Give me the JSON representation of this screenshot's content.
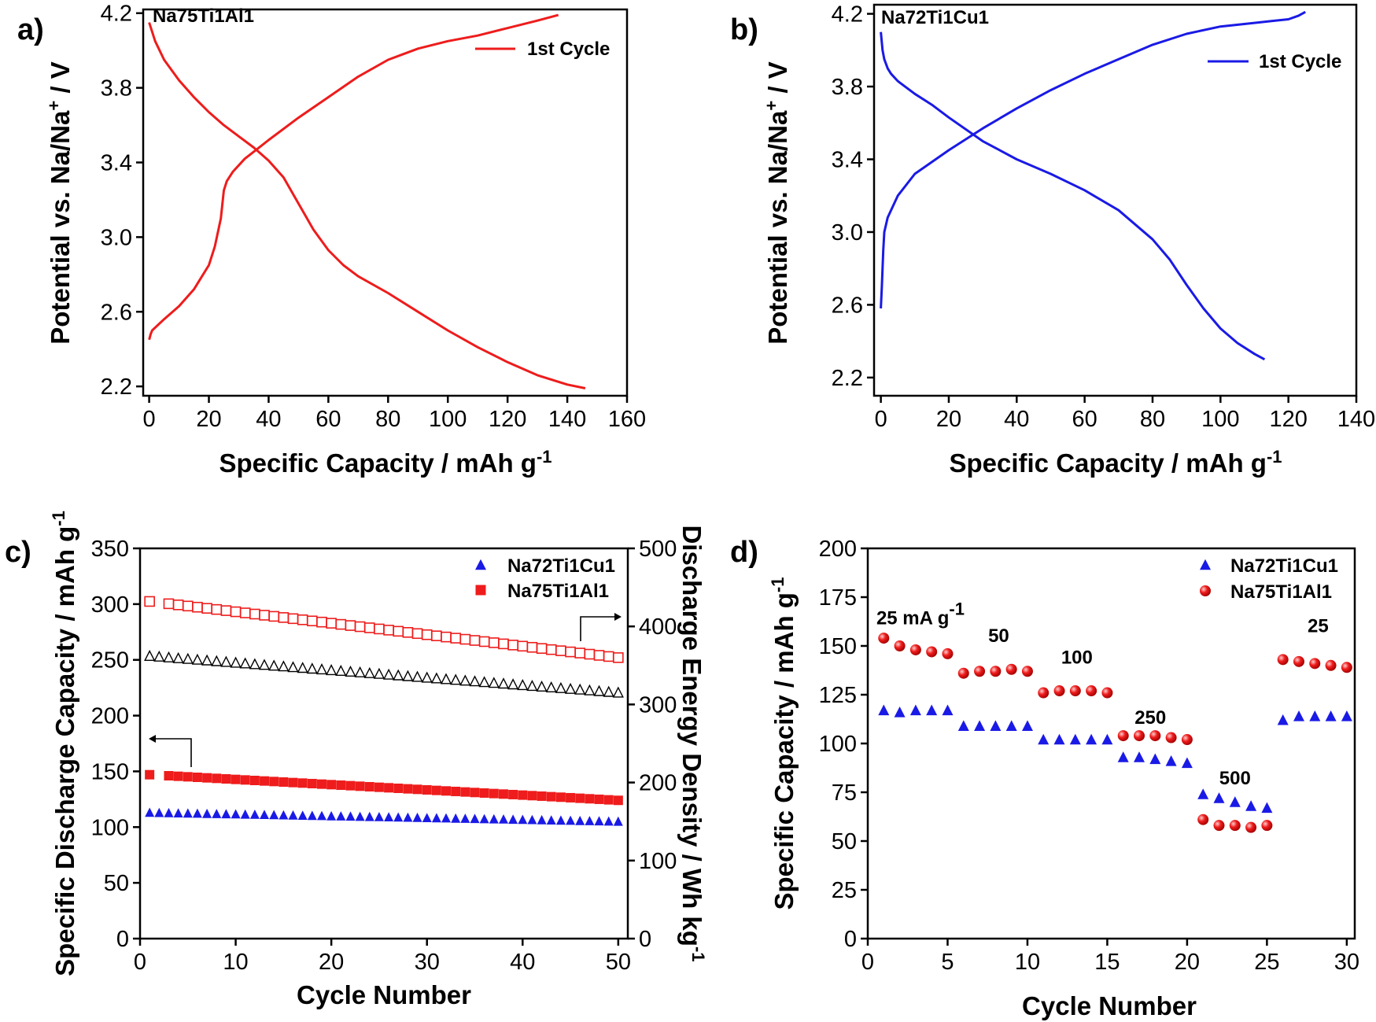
{
  "colors": {
    "red": "#ee1c1c",
    "blue": "#1a1ae6",
    "black": "#000000"
  },
  "chart_data": [
    {
      "id": "a",
      "type": "line",
      "panel_label": "a)",
      "title": "Na75Ti1Al1",
      "xlabel": "Specific Capacity / mAh g",
      "xlabel_sup": "-1",
      "ylabel": "Potential vs. Na/Na",
      "ylabel_sup": "+",
      "ylabel_suffix": " / V",
      "xlim": [
        -2,
        160
      ],
      "ylim": [
        2.15,
        4.22
      ],
      "xticks": [
        0,
        20,
        40,
        60,
        80,
        100,
        120,
        140,
        160
      ],
      "yticks": [
        2.2,
        2.6,
        3.0,
        3.4,
        3.8,
        4.2
      ],
      "xtick_labels": [
        "0",
        "20",
        "40",
        "60",
        "80",
        "100",
        "120",
        "140",
        "160"
      ],
      "ytick_labels": [
        "2.2",
        "2.6",
        "3.0",
        "3.4",
        "3.8",
        "4.2"
      ],
      "legend": [
        "1st Cycle"
      ],
      "series": [
        {
          "name": "1st Cycle (discharge)",
          "color": "#ee1c1c",
          "x": [
            0,
            2,
            5,
            10,
            15,
            20,
            25,
            30,
            35,
            40,
            45,
            50,
            55,
            60,
            65,
            70,
            80,
            90,
            100,
            110,
            120,
            130,
            140,
            146
          ],
          "y": [
            4.15,
            4.05,
            3.95,
            3.84,
            3.75,
            3.67,
            3.6,
            3.54,
            3.48,
            3.41,
            3.32,
            3.18,
            3.04,
            2.93,
            2.85,
            2.79,
            2.7,
            2.6,
            2.5,
            2.41,
            2.33,
            2.26,
            2.21,
            2.19
          ]
        },
        {
          "name": "1st Cycle (charge)",
          "color": "#ee1c1c",
          "x": [
            0,
            0.5,
            1,
            5,
            10,
            15,
            20,
            22,
            24,
            25,
            26,
            28,
            32,
            36,
            40,
            50,
            60,
            70,
            80,
            90,
            100,
            110,
            120,
            130,
            137
          ],
          "y": [
            2.45,
            2.48,
            2.5,
            2.56,
            2.63,
            2.72,
            2.85,
            2.95,
            3.1,
            3.25,
            3.3,
            3.35,
            3.42,
            3.47,
            3.52,
            3.64,
            3.75,
            3.86,
            3.95,
            4.01,
            4.05,
            4.08,
            4.12,
            4.16,
            4.19
          ]
        }
      ]
    },
    {
      "id": "b",
      "type": "line",
      "panel_label": "b)",
      "title": "Na72Ti1Cu1",
      "xlabel": "Specific Capacity / mAh g",
      "xlabel_sup": "-1",
      "ylabel": "Potential vs. Na/Na",
      "ylabel_sup": "+",
      "ylabel_suffix": " / V",
      "xlim": [
        -2,
        140
      ],
      "ylim": [
        2.1,
        4.25
      ],
      "xticks": [
        0,
        20,
        40,
        60,
        80,
        100,
        120,
        140
      ],
      "yticks": [
        2.2,
        2.6,
        3.0,
        3.4,
        3.8,
        4.2
      ],
      "xtick_labels": [
        "0",
        "20",
        "40",
        "60",
        "80",
        "100",
        "120",
        "140"
      ],
      "ytick_labels": [
        "2.2",
        "2.6",
        "3.0",
        "3.4",
        "3.8",
        "4.2"
      ],
      "legend": [
        "1st Cycle"
      ],
      "series": [
        {
          "name": "1st Cycle (discharge)",
          "color": "#1a1ae6",
          "x": [
            0,
            0.5,
            1,
            2,
            3,
            5,
            10,
            15,
            20,
            30,
            40,
            50,
            60,
            70,
            80,
            85,
            90,
            95,
            100,
            105,
            110,
            113
          ],
          "y": [
            4.1,
            4.0,
            3.95,
            3.9,
            3.87,
            3.83,
            3.76,
            3.7,
            3.63,
            3.5,
            3.4,
            3.32,
            3.23,
            3.12,
            2.96,
            2.85,
            2.71,
            2.58,
            2.47,
            2.39,
            2.33,
            2.3
          ]
        },
        {
          "name": "1st Cycle (charge)",
          "color": "#1a1ae6",
          "x": [
            0,
            0.3,
            0.7,
            1,
            2,
            5,
            10,
            20,
            30,
            40,
            50,
            60,
            70,
            80,
            90,
            100,
            110,
            115,
            120,
            123,
            125
          ],
          "y": [
            2.58,
            2.7,
            2.9,
            3.0,
            3.08,
            3.2,
            3.32,
            3.45,
            3.57,
            3.68,
            3.78,
            3.87,
            3.95,
            4.03,
            4.09,
            4.13,
            4.15,
            4.16,
            4.17,
            4.19,
            4.21
          ]
        }
      ]
    },
    {
      "id": "c",
      "type": "scatter",
      "panel_label": "c)",
      "xlabel": "Cycle Number",
      "ylabel": "Specific Discharge Capacity / mAh g",
      "ylabel_sup": "-1",
      "y2label": "Discharge Energy Density / Wh kg",
      "y2label_sup": "-1",
      "xlim": [
        0,
        51
      ],
      "ylim": [
        0,
        350
      ],
      "y2lim": [
        0,
        500
      ],
      "xticks": [
        0,
        10,
        20,
        30,
        40,
        50
      ],
      "yticks": [
        0,
        50,
        100,
        150,
        200,
        250,
        300,
        350
      ],
      "y2ticks": [
        0,
        100,
        200,
        300,
        400,
        500
      ],
      "xtick_labels": [
        "0",
        "10",
        "20",
        "30",
        "40",
        "50"
      ],
      "ytick_labels": [
        "0",
        "50",
        "100",
        "150",
        "200",
        "250",
        "300",
        "350"
      ],
      "y2tick_labels": [
        "0",
        "100",
        "200",
        "300",
        "400",
        "500"
      ],
      "legend": [
        "Na72Ti1Cu1",
        "Na75Ti1Al1"
      ],
      "series": [
        {
          "name": "Na72Ti1Cu1",
          "axis": "left",
          "marker": "triangle",
          "filled": true,
          "color": "#1a1ae6",
          "x_start": 1,
          "x_end": 50,
          "y_start": 113,
          "y_end": 105
        },
        {
          "name": "Na75Ti1Al1",
          "axis": "left",
          "marker": "square",
          "filled": true,
          "color": "#ee1c1c",
          "x_start": 1,
          "x_end": 50,
          "y_start": 147,
          "y_end": 124,
          "skip": [
            2
          ]
        },
        {
          "name": "Na75Ti1Al1 energy density",
          "axis": "right",
          "marker": "square",
          "filled": false,
          "color": "#ee1c1c",
          "x_start": 1,
          "x_end": 50,
          "y_start": 432,
          "y_end": 360,
          "skip": [
            2
          ]
        },
        {
          "name": "Na72Ti1Cu1 energy density",
          "axis": "right",
          "marker": "triangle",
          "filled": false,
          "color": "#000000",
          "x_start": 1,
          "x_end": 50,
          "y_start": 362,
          "y_end": 315
        }
      ]
    },
    {
      "id": "d",
      "type": "scatter",
      "panel_label": "d)",
      "xlabel": "Cycle Number",
      "ylabel": "Specific Capacity / mAh g",
      "ylabel_sup": "-1",
      "xlim": [
        0,
        30.5
      ],
      "ylim": [
        0,
        200
      ],
      "xticks": [
        0,
        5,
        10,
        15,
        20,
        25,
        30
      ],
      "yticks": [
        0,
        25,
        50,
        75,
        100,
        125,
        150,
        175,
        200
      ],
      "xtick_labels": [
        "0",
        "5",
        "10",
        "15",
        "20",
        "25",
        "30"
      ],
      "ytick_labels": [
        "0",
        "25",
        "50",
        "75",
        "100",
        "125",
        "150",
        "175",
        "200"
      ],
      "legend": [
        "Na72Ti1Cu1",
        "Na75Ti1Al1"
      ],
      "annotations": [
        {
          "text": "25 mA g",
          "sup": "-1",
          "x": 3.3,
          "y": 161
        },
        {
          "text": "50",
          "x": 8.2,
          "y": 152
        },
        {
          "text": "100",
          "x": 13.1,
          "y": 141
        },
        {
          "text": "250",
          "x": 17.7,
          "y": 110
        },
        {
          "text": "500",
          "x": 23.0,
          "y": 79
        },
        {
          "text": "25",
          "x": 28.2,
          "y": 157
        }
      ],
      "series": [
        {
          "name": "Na72Ti1Cu1",
          "marker": "triangle",
          "color": "#1a1ae6",
          "x": [
            1,
            2,
            3,
            4,
            5,
            6,
            7,
            8,
            9,
            10,
            11,
            12,
            13,
            14,
            15,
            16,
            17,
            18,
            19,
            20,
            21,
            22,
            23,
            24,
            25,
            26,
            27,
            28,
            29,
            30
          ],
          "y": [
            117,
            116,
            117,
            117,
            117,
            109,
            109,
            109,
            109,
            109,
            102,
            102,
            102,
            102,
            102,
            93,
            93,
            92,
            91,
            90,
            74,
            72,
            70,
            68,
            67,
            112,
            114,
            114,
            114,
            114
          ]
        },
        {
          "name": "Na75Ti1Al1",
          "marker": "sphere",
          "color": "#ee1c1c",
          "x": [
            1,
            2,
            3,
            4,
            5,
            6,
            7,
            8,
            9,
            10,
            11,
            12,
            13,
            14,
            15,
            16,
            17,
            18,
            19,
            20,
            21,
            22,
            23,
            24,
            25,
            26,
            27,
            28,
            29,
            30
          ],
          "y": [
            154,
            150,
            148,
            147,
            146,
            136,
            137,
            137,
            138,
            137,
            126,
            127,
            127,
            127,
            126,
            104,
            104,
            104,
            103,
            102,
            61,
            58,
            58,
            57,
            58,
            143,
            142,
            141,
            140,
            139
          ]
        }
      ]
    }
  ]
}
